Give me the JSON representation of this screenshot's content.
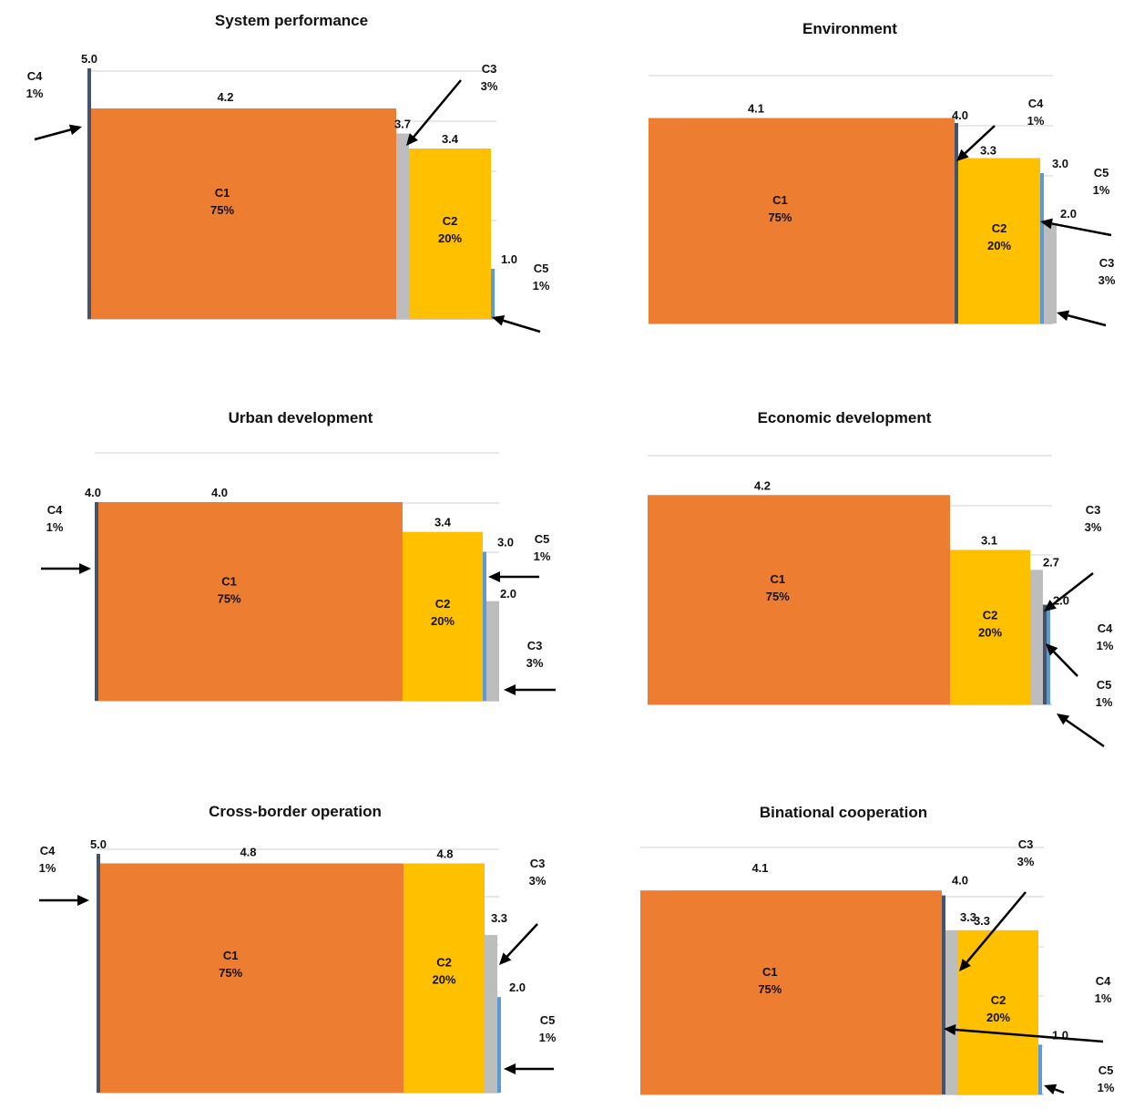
{
  "colors": {
    "C1": "#ED7D31",
    "C2": "#FFC000",
    "C3": "#BDBDBD",
    "C4": "#44546A",
    "C5": "#5B9BD5",
    "grid": "#D9D9D9",
    "axis": "#BFBFBF"
  },
  "chart_data": [
    {
      "type": "bar",
      "title": "System performance",
      "segments": [
        {
          "name": "C4",
          "share": "1%",
          "value": 5.0,
          "label": "5.0"
        },
        {
          "name": "C1",
          "share": "75%",
          "value": 4.2,
          "label": "4.2"
        },
        {
          "name": "C3",
          "share": "3%",
          "value": 3.7,
          "label": "3.7"
        },
        {
          "name": "C2",
          "share": "20%",
          "value": 3.4,
          "label": "3.4"
        },
        {
          "name": "C5",
          "share": "1%",
          "value": 1.0,
          "label": "1.0"
        }
      ]
    },
    {
      "type": "bar",
      "title": "Environment",
      "segments": [
        {
          "name": "C1",
          "share": "75%",
          "value": 4.1,
          "label": "4.1"
        },
        {
          "name": "C4",
          "share": "1%",
          "value": 4.0,
          "label": "4.0"
        },
        {
          "name": "C2",
          "share": "20%",
          "value": 3.3,
          "label": "3.3"
        },
        {
          "name": "C5",
          "share": "1%",
          "value": 3.0,
          "label": "3.0"
        },
        {
          "name": "C3",
          "share": "3%",
          "value": 2.0,
          "label": "2.0"
        }
      ]
    },
    {
      "type": "bar",
      "title": "Urban development",
      "segments": [
        {
          "name": "C4",
          "share": "1%",
          "value": 4.0,
          "label": "4.0"
        },
        {
          "name": "C1",
          "share": "75%",
          "value": 4.0,
          "label": "4.0"
        },
        {
          "name": "C2",
          "share": "20%",
          "value": 3.4,
          "label": "3.4"
        },
        {
          "name": "C5",
          "share": "1%",
          "value": 3.0,
          "label": "3.0"
        },
        {
          "name": "C3",
          "share": "3%",
          "value": 2.0,
          "label": "2.0"
        }
      ]
    },
    {
      "type": "bar",
      "title": "Economic development",
      "segments": [
        {
          "name": "C1",
          "share": "75%",
          "value": 4.2,
          "label": "4.2"
        },
        {
          "name": "C2",
          "share": "20%",
          "value": 3.1,
          "label": "3.1"
        },
        {
          "name": "C3",
          "share": "3%",
          "value": 2.7,
          "label": "2.7"
        },
        {
          "name": "C4",
          "share": "1%",
          "value": 2.0,
          "label": "2.0"
        },
        {
          "name": "C5",
          "share": "1%",
          "value": 2.0,
          "label": ""
        }
      ]
    },
    {
      "type": "bar",
      "title": "Cross-border operation",
      "segments": [
        {
          "name": "C4",
          "share": "1%",
          "value": 5.0,
          "label": "5.0"
        },
        {
          "name": "C1",
          "share": "75%",
          "value": 4.8,
          "label": "4.8"
        },
        {
          "name": "C2",
          "share": "20%",
          "value": 4.8,
          "label": "4.8"
        },
        {
          "name": "C3",
          "share": "3%",
          "value": 3.3,
          "label": "3.3"
        },
        {
          "name": "C5",
          "share": "1%",
          "value": 2.0,
          "label": "2.0"
        }
      ]
    },
    {
      "type": "bar",
      "title": "Binational cooperation",
      "segments": [
        {
          "name": "C1",
          "share": "75%",
          "value": 4.1,
          "label": "4.1"
        },
        {
          "name": "C4",
          "share": "1%",
          "value": 4.0,
          "label": "4.0"
        },
        {
          "name": "C3",
          "share": "3%",
          "value": 3.3,
          "label": "3.3"
        },
        {
          "name": "C2",
          "share": "20%",
          "value": 3.3,
          "label": "3.3"
        },
        {
          "name": "C5",
          "share": "1%",
          "value": 1.0,
          "label": "1.0"
        }
      ]
    }
  ]
}
